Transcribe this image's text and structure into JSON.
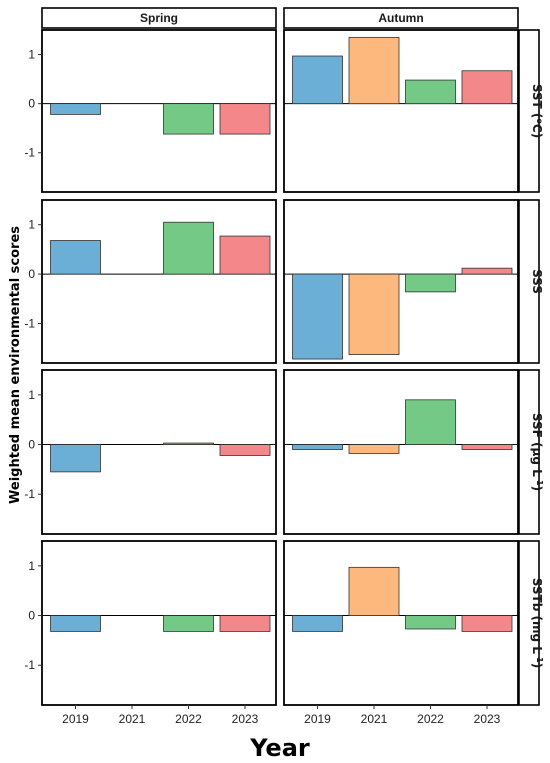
{
  "chart_data": {
    "type": "bar",
    "xlabel": "Year",
    "ylabel": "Weighted mean environmental scores",
    "ylim": [
      -1.8,
      1.5
    ],
    "y_ticks": [
      -1,
      0,
      1
    ],
    "grid": false,
    "legend": "none",
    "columns": [
      "Spring",
      "Autumn"
    ],
    "categories": [
      "2019",
      "2021",
      "2022",
      "2023"
    ],
    "colors": {
      "2019": "#6BAED6",
      "2021": "#FDB97D",
      "2022": "#74C987",
      "2023": "#F4878A"
    },
    "rows": [
      {
        "label_main": "SST (",
        "label_sup": "o",
        "label_after": "C)",
        "values": {
          "Spring": [
            -0.22,
            null,
            -0.62,
            -0.62
          ],
          "Autumn": [
            0.97,
            1.35,
            0.48,
            0.67
          ]
        }
      },
      {
        "label_main": "SSS",
        "label_sup": "",
        "label_after": "",
        "values": {
          "Spring": [
            0.68,
            null,
            1.05,
            0.77
          ],
          "Autumn": [
            -1.72,
            -1.63,
            -0.36,
            0.12
          ]
        }
      },
      {
        "label_main": "SSF (μg L",
        "label_sup": "-1",
        "label_after": ")",
        "values": {
          "Spring": [
            -0.55,
            null,
            0.03,
            -0.22
          ],
          "Autumn": [
            -0.1,
            -0.18,
            0.9,
            -0.1
          ]
        }
      },
      {
        "label_main": "SSTb (mg L",
        "label_sup": "-1",
        "label_after": ")",
        "values": {
          "Spring": [
            -0.32,
            null,
            -0.32,
            -0.32
          ],
          "Autumn": [
            -0.32,
            0.97,
            -0.27,
            -0.32
          ]
        }
      }
    ]
  }
}
